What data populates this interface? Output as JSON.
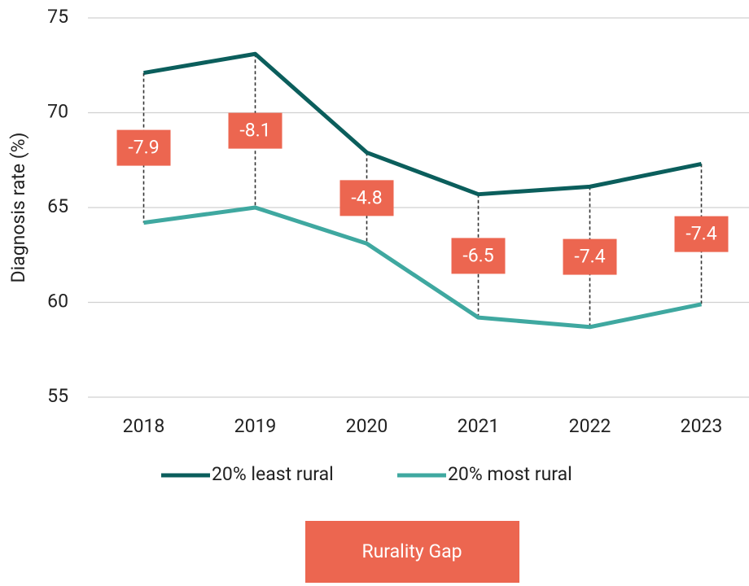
{
  "chart_data": {
    "type": "line",
    "y_label": "Diagnosis rate (%)",
    "categories": [
      "2018",
      "2019",
      "2020",
      "2021",
      "2022",
      "2023"
    ],
    "series": [
      {
        "name": "20% least rural",
        "color": "#0b5e5c",
        "values": [
          72.1,
          73.1,
          67.9,
          65.7,
          66.1,
          67.3
        ]
      },
      {
        "name": "20% most rural",
        "color": "#3fa8a0",
        "values": [
          64.2,
          65.0,
          63.1,
          59.2,
          58.7,
          59.9
        ]
      }
    ],
    "gap": {
      "name": "Rurality Gap",
      "color": "#ec6650",
      "values": [
        -7.9,
        -8.1,
        -4.8,
        -6.5,
        -7.4,
        -7.4
      ]
    },
    "ylim": [
      55,
      75
    ],
    "yticks": [
      55,
      60,
      65,
      70,
      75
    ],
    "grid": true
  }
}
